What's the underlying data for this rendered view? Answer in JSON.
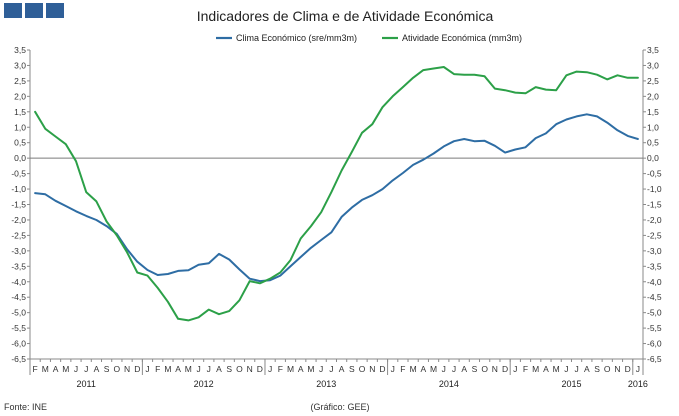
{
  "chart_data": {
    "type": "line",
    "title": "Indicadores de Clima e de Atividade Económica",
    "source_left": "Fonte: INE",
    "source_center": "(Gráfico: GEE)",
    "ylim": [
      -6.5,
      3.5
    ],
    "ytick_step": 0.5,
    "yticks": [
      "3,5",
      "3,0",
      "2,5",
      "2,0",
      "1,5",
      "1,0",
      "0,5",
      "0,0",
      "-0,5",
      "-1,0",
      "-1,5",
      "-2,0",
      "-2,5",
      "-3,0",
      "-3,5",
      "-4,0",
      "-4,5",
      "-5,0",
      "-5,5",
      "-6,0",
      "-6,5"
    ],
    "months": [
      "F",
      "M",
      "A",
      "M",
      "J",
      "J",
      "A",
      "S",
      "O",
      "N",
      "D",
      "J",
      "F",
      "M",
      "A",
      "M",
      "J",
      "J",
      "A",
      "S",
      "O",
      "N",
      "D",
      "J",
      "F",
      "M",
      "A",
      "M",
      "J",
      "J",
      "A",
      "S",
      "O",
      "N",
      "D",
      "J",
      "F",
      "M",
      "A",
      "M",
      "J",
      "J",
      "A",
      "S",
      "O",
      "N",
      "D",
      "J",
      "F",
      "M",
      "A",
      "M",
      "J",
      "J",
      "A",
      "S",
      "O",
      "N",
      "D",
      "J"
    ],
    "years": [
      {
        "label": "2011",
        "start": 0,
        "end": 10
      },
      {
        "label": "2012",
        "start": 11,
        "end": 22
      },
      {
        "label": "2013",
        "start": 23,
        "end": 34
      },
      {
        "label": "2014",
        "start": 35,
        "end": 46
      },
      {
        "label": "2015",
        "start": 47,
        "end": 58
      },
      {
        "label": "2016",
        "start": 59,
        "end": 59
      }
    ],
    "series": [
      {
        "name": "Clima Económico (sre/mm3m)",
        "color": "#2e6da4",
        "values": [
          -1.13,
          -1.17,
          -1.38,
          -1.55,
          -1.72,
          -1.87,
          -2.0,
          -2.2,
          -2.45,
          -2.95,
          -3.35,
          -3.62,
          -3.78,
          -3.75,
          -3.65,
          -3.63,
          -3.45,
          -3.4,
          -3.1,
          -3.28,
          -3.6,
          -3.9,
          -3.98,
          -3.95,
          -3.8,
          -3.5,
          -3.2,
          -2.9,
          -2.65,
          -2.4,
          -1.9,
          -1.6,
          -1.35,
          -1.2,
          -1.0,
          -0.72,
          -0.48,
          -0.22,
          -0.05,
          0.15,
          0.38,
          0.55,
          0.62,
          0.55,
          0.56,
          0.4,
          0.18,
          0.28,
          0.35,
          0.65,
          0.8,
          1.1,
          1.25,
          1.35,
          1.42,
          1.35,
          1.15,
          0.9,
          0.72,
          0.62
        ]
      },
      {
        "name": "Atividade Económica (mm3m)",
        "color": "#2ca048",
        "values": [
          1.5,
          0.95,
          0.7,
          0.45,
          -0.1,
          -1.1,
          -1.4,
          -2.05,
          -2.5,
          -3.05,
          -3.7,
          -3.8,
          -4.2,
          -4.65,
          -5.2,
          -5.25,
          -5.15,
          -4.9,
          -5.05,
          -4.95,
          -4.6,
          -3.98,
          -4.05,
          -3.9,
          -3.7,
          -3.3,
          -2.6,
          -2.2,
          -1.75,
          -1.1,
          -0.4,
          0.2,
          0.82,
          1.1,
          1.65,
          2.0,
          2.3,
          2.6,
          2.85,
          2.9,
          2.95,
          2.72,
          2.7,
          2.7,
          2.65,
          2.25,
          2.2,
          2.12,
          2.1,
          2.3,
          2.22,
          2.2,
          2.68,
          2.8,
          2.78,
          2.7,
          2.55,
          2.68,
          2.6,
          2.6
        ]
      }
    ]
  }
}
